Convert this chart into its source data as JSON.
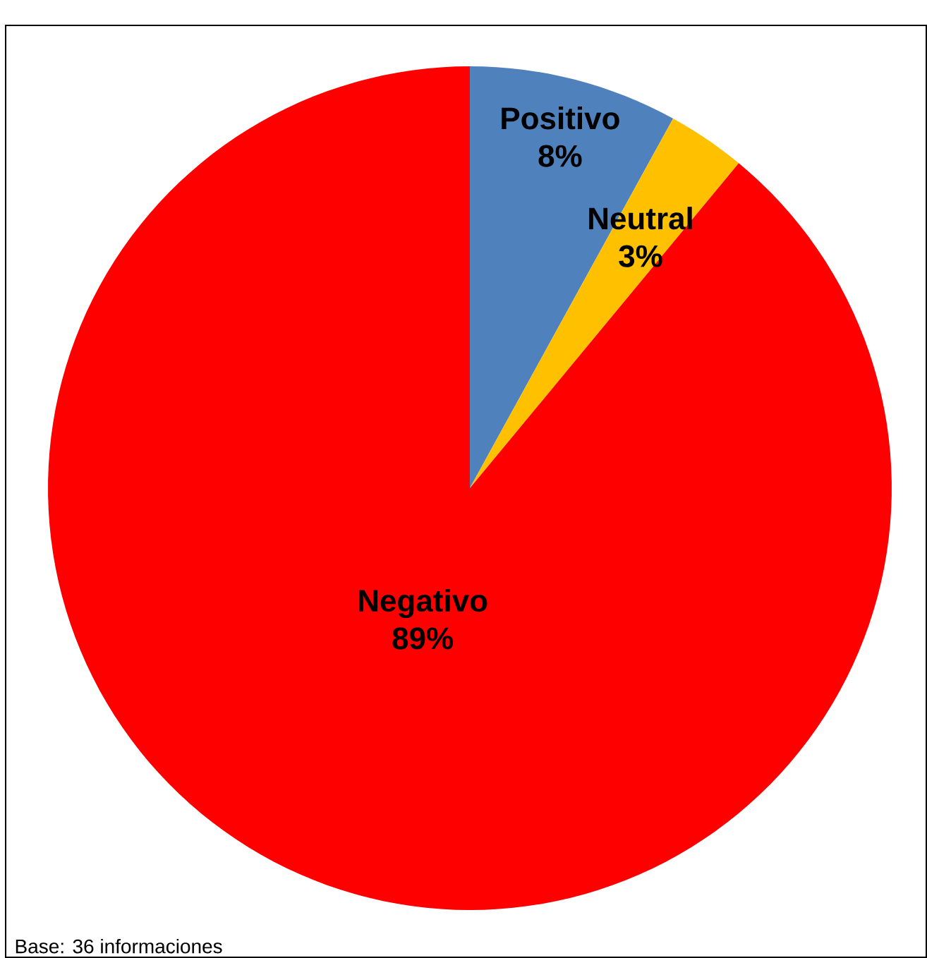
{
  "chart_data": {
    "type": "pie",
    "categories": [
      "Positivo",
      "Neutral",
      "Negativo"
    ],
    "values": [
      8,
      3,
      89
    ],
    "colors": [
      "#4f81bd",
      "#ffc000",
      "#ff0000"
    ],
    "value_labels": [
      "8%",
      "3%",
      "89%"
    ],
    "annotations": [
      "Base: 36 informaciones"
    ]
  }
}
